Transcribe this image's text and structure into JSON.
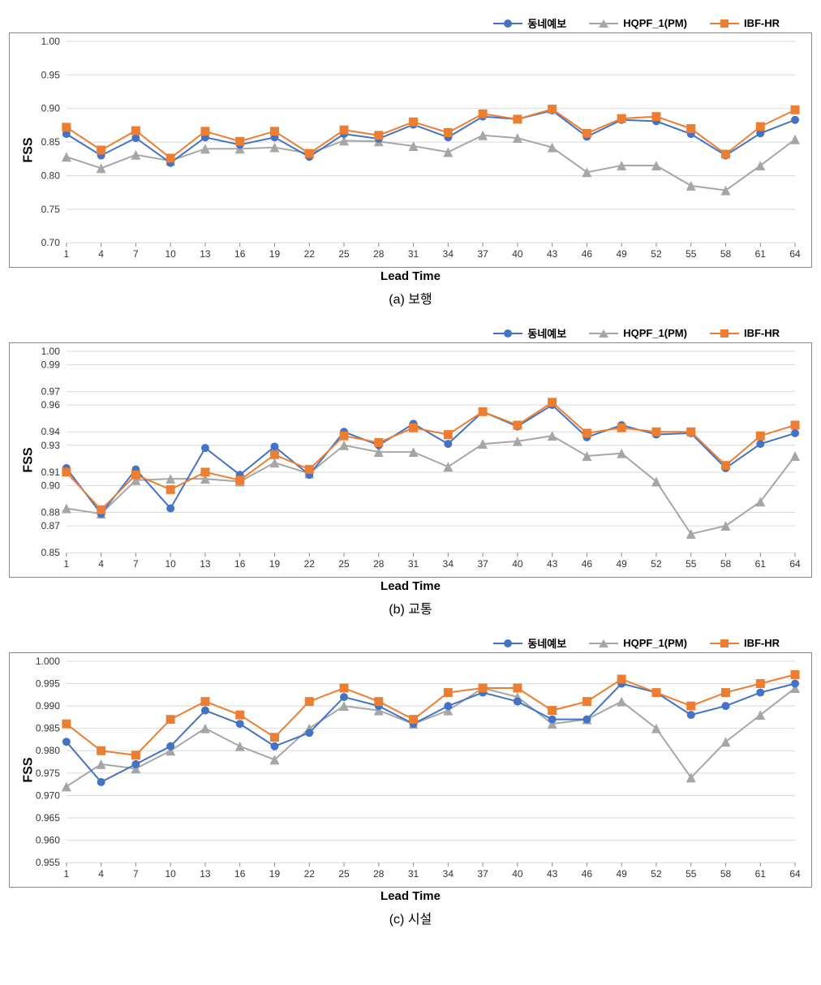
{
  "legend": {
    "series1": {
      "label": "동네예보",
      "color": "#4472c4",
      "marker": "circle"
    },
    "series2": {
      "label": "HQPF_1(PM)",
      "color": "#a6a6a6",
      "marker": "triangle"
    },
    "series3": {
      "label": "IBF-HR",
      "color": "#ed7d31",
      "marker": "square"
    }
  },
  "shared": {
    "xlabel": "Lead Time",
    "ylabel": "FSS",
    "xticks": [
      1,
      4,
      7,
      10,
      13,
      16,
      19,
      22,
      25,
      28,
      31,
      34,
      37,
      40,
      43,
      46,
      49,
      52,
      55,
      58,
      61,
      64
    ],
    "grid_color": "#d9d9d9",
    "grid_width": 1,
    "tick_fontsize": 12,
    "label_fontsize": 15,
    "line_width": 2,
    "marker_size": 5,
    "background_color": "#ffffff",
    "border_color": "#888888"
  },
  "panels": [
    {
      "id": "a",
      "caption": "(a) 보행",
      "ylim": [
        0.7,
        1.0
      ],
      "yticks": [
        0.7,
        0.75,
        0.8,
        0.85,
        0.9,
        0.95,
        1.0
      ],
      "ytick_labels": [
        "0.70",
        "0.75",
        "0.80",
        "0.85",
        "0.90",
        "0.95",
        "1.00"
      ],
      "series": {
        "s1": [
          0.862,
          0.83,
          0.856,
          0.819,
          0.857,
          0.846,
          0.857,
          0.828,
          0.862,
          0.855,
          0.876,
          0.857,
          0.888,
          0.884,
          0.897,
          0.858,
          0.883,
          0.881,
          0.862,
          0.83,
          0.863,
          0.883
        ],
        "s2": [
          0.828,
          0.811,
          0.831,
          0.822,
          0.84,
          0.84,
          0.842,
          0.833,
          0.852,
          0.851,
          0.844,
          0.835,
          0.86,
          0.856,
          0.842,
          0.805,
          0.815,
          0.815,
          0.785,
          0.778,
          0.815,
          0.854
        ],
        "s3": [
          0.872,
          0.838,
          0.867,
          0.826,
          0.866,
          0.851,
          0.866,
          0.833,
          0.868,
          0.86,
          0.88,
          0.864,
          0.892,
          0.884,
          0.899,
          0.863,
          0.885,
          0.888,
          0.87,
          0.832,
          0.873,
          0.898
        ]
      }
    },
    {
      "id": "b",
      "caption": "(b) 교통",
      "ylim": [
        0.85,
        1.0
      ],
      "yticks": [
        0.85,
        0.87,
        0.88,
        0.9,
        0.91,
        0.93,
        0.94,
        0.96,
        0.97,
        0.99,
        1.0
      ],
      "ytick_labels": [
        "0.85",
        "0.87",
        "0.88",
        "0.90",
        "0.91",
        "0.93",
        "0.94",
        "0.96",
        "0.97",
        "0.99",
        "1.00"
      ],
      "series": {
        "s1": [
          0.913,
          0.879,
          0.912,
          0.883,
          0.928,
          0.908,
          0.929,
          0.908,
          0.94,
          0.93,
          0.946,
          0.931,
          0.955,
          0.944,
          0.96,
          0.936,
          0.945,
          0.938,
          0.939,
          0.913,
          0.931,
          0.939
        ],
        "s2": [
          0.883,
          0.879,
          0.904,
          0.905,
          0.905,
          0.903,
          0.917,
          0.909,
          0.93,
          0.925,
          0.925,
          0.914,
          0.931,
          0.933,
          0.937,
          0.922,
          0.924,
          0.903,
          0.864,
          0.87,
          0.888,
          0.922
        ],
        "s3": [
          0.91,
          0.882,
          0.908,
          0.897,
          0.91,
          0.904,
          0.923,
          0.912,
          0.937,
          0.932,
          0.943,
          0.938,
          0.955,
          0.945,
          0.962,
          0.939,
          0.943,
          0.94,
          0.94,
          0.915,
          0.937,
          0.945
        ]
      }
    },
    {
      "id": "c",
      "caption": "(c) 시설",
      "ylim": [
        0.955,
        1.0
      ],
      "yticks": [
        0.955,
        0.96,
        0.965,
        0.97,
        0.975,
        0.98,
        0.985,
        0.99,
        0.995,
        1.0
      ],
      "ytick_labels": [
        "0.955",
        "0.960",
        "0.965",
        "0.970",
        "0.975",
        "0.980",
        "0.985",
        "0.990",
        "0.995",
        "1.000"
      ],
      "series": {
        "s1": [
          0.982,
          0.973,
          0.977,
          0.981,
          0.989,
          0.986,
          0.981,
          0.984,
          0.992,
          0.99,
          0.986,
          0.99,
          0.993,
          0.991,
          0.987,
          0.987,
          0.995,
          0.993,
          0.988,
          0.99,
          0.993,
          0.995
        ],
        "s2": [
          0.972,
          0.977,
          0.976,
          0.98,
          0.985,
          0.981,
          0.978,
          0.985,
          0.99,
          0.989,
          0.986,
          0.989,
          0.994,
          0.992,
          0.986,
          0.987,
          0.991,
          0.985,
          0.974,
          0.982,
          0.988,
          0.994
        ],
        "s3": [
          0.986,
          0.98,
          0.979,
          0.987,
          0.991,
          0.988,
          0.983,
          0.991,
          0.994,
          0.991,
          0.987,
          0.993,
          0.994,
          0.994,
          0.989,
          0.991,
          0.996,
          0.993,
          0.99,
          0.993,
          0.995,
          0.997
        ]
      }
    }
  ]
}
